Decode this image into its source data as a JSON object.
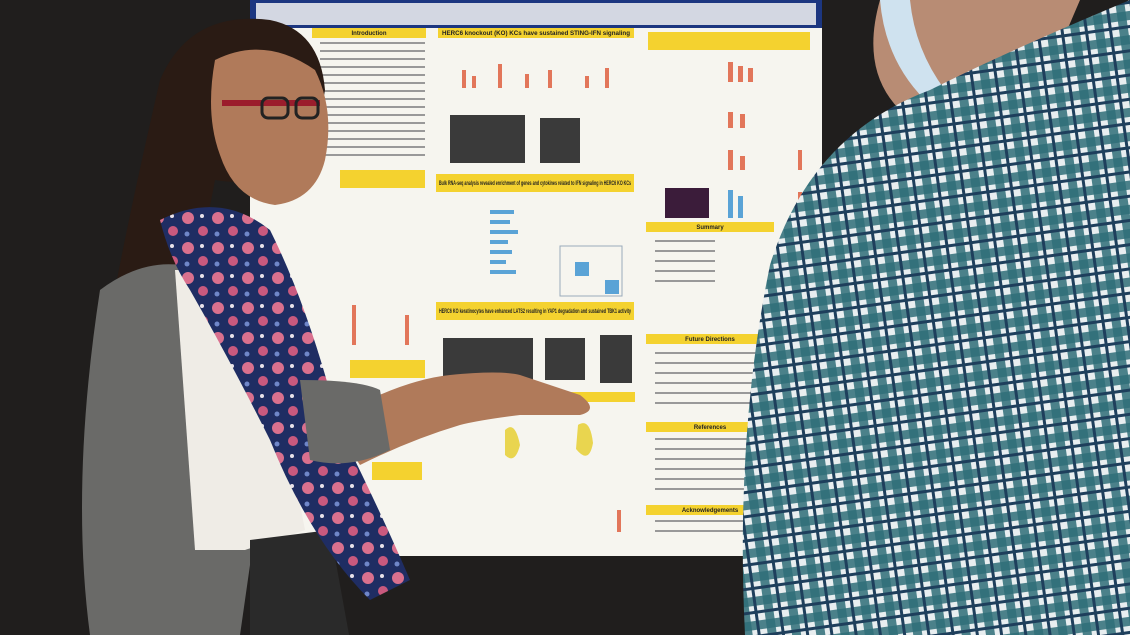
{
  "poster": {
    "sections": [
      "Introduction",
      "HERC6 knockout (KO) KCs have sustained STING-IFN signaling",
      "Bulk RNA-seq analysis revealed enrichment of genes and cytokines related to IFN signaling in HERC6 KO KCs",
      "HERC6 KO keratinocytes have enhanced LATS2 resulting in YAP1 degradation and sustained TBK1 activity",
      "Summary",
      "Future Directions",
      "References",
      "Acknowledgements"
    ]
  }
}
